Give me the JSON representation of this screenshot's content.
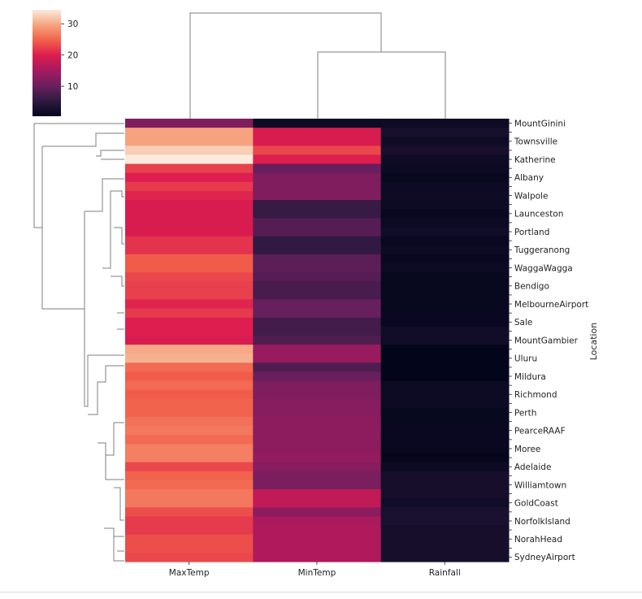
{
  "chart_data": {
    "type": "heatmap",
    "title": "",
    "xlabel": "",
    "ylabel": "Location",
    "columns": [
      "MaxTemp",
      "MinTemp",
      "Rainfall"
    ],
    "rows": [
      {
        "label": "MountGinini",
        "values": [
          12.0,
          1.5,
          1.8
        ]
      },
      {
        "label": "",
        "values": [
          29.5,
          19.5,
          2.8
        ]
      },
      {
        "label": "Townsville",
        "values": [
          29.5,
          19.5,
          1.8
        ]
      },
      {
        "label": "",
        "values": [
          32.5,
          23.0,
          2.8
        ]
      },
      {
        "label": "Katherine",
        "values": [
          34.5,
          20.0,
          1.8
        ]
      },
      {
        "label": "",
        "values": [
          22.5,
          10.0,
          1.5
        ]
      },
      {
        "label": "Albany",
        "values": [
          20.0,
          12.0,
          1.0
        ]
      },
      {
        "label": "",
        "values": [
          22.0,
          12.0,
          1.5
        ]
      },
      {
        "label": "Walpole",
        "values": [
          20.5,
          12.0,
          1.8
        ]
      },
      {
        "label": "",
        "values": [
          19.5,
          6.0,
          1.5
        ]
      },
      {
        "label": "Launceston",
        "values": [
          19.5,
          6.0,
          1.2
        ]
      },
      {
        "label": "",
        "values": [
          19.5,
          8.5,
          1.5
        ]
      },
      {
        "label": "Portland",
        "values": [
          19.5,
          8.5,
          2.0
        ]
      },
      {
        "label": "",
        "values": [
          21.5,
          5.5,
          1.2
        ]
      },
      {
        "label": "Tuggeranong",
        "values": [
          21.5,
          5.5,
          1.5
        ]
      },
      {
        "label": "",
        "values": [
          24.5,
          9.0,
          1.2
        ]
      },
      {
        "label": "WaggaWagga",
        "values": [
          24.5,
          9.0,
          1.5
        ]
      },
      {
        "label": "",
        "values": [
          23.0,
          8.5,
          1.0
        ]
      },
      {
        "label": "Bendigo",
        "values": [
          22.5,
          7.5,
          1.0
        ]
      },
      {
        "label": "",
        "values": [
          22.5,
          7.5,
          1.0
        ]
      },
      {
        "label": "MelbourneAirport",
        "values": [
          20.5,
          10.0,
          1.0
        ]
      },
      {
        "label": "",
        "values": [
          22.0,
          10.0,
          1.2
        ]
      },
      {
        "label": "Sale",
        "values": [
          20.0,
          7.0,
          1.2
        ]
      },
      {
        "label": "",
        "values": [
          20.0,
          7.0,
          2.0
        ]
      },
      {
        "label": "MountGambier",
        "values": [
          19.5,
          8.0,
          2.0
        ]
      },
      {
        "label": "",
        "values": [
          30.0,
          14.0,
          0.4
        ]
      },
      {
        "label": "Uluru",
        "values": [
          30.5,
          14.0,
          0.4
        ]
      },
      {
        "label": "",
        "values": [
          25.5,
          8.0,
          0.4
        ]
      },
      {
        "label": "Mildura",
        "values": [
          24.5,
          10.0,
          0.4
        ]
      },
      {
        "label": "",
        "values": [
          25.5,
          12.0,
          1.5
        ]
      },
      {
        "label": "Richmond",
        "values": [
          24.5,
          12.0,
          1.5
        ]
      },
      {
        "label": "",
        "values": [
          25.0,
          12.5,
          1.5
        ]
      },
      {
        "label": "Perth",
        "values": [
          25.0,
          12.5,
          1.0
        ]
      },
      {
        "label": "",
        "values": [
          26.0,
          13.0,
          1.0
        ]
      },
      {
        "label": "PearceRAAF",
        "values": [
          26.5,
          13.0,
          1.2
        ]
      },
      {
        "label": "",
        "values": [
          25.5,
          13.0,
          1.2
        ]
      },
      {
        "label": "Moree",
        "values": [
          27.0,
          13.0,
          1.0
        ]
      },
      {
        "label": "",
        "values": [
          27.0,
          13.5,
          0.6
        ]
      },
      {
        "label": "Adelaide",
        "values": [
          23.0,
          12.5,
          1.5
        ]
      },
      {
        "label": "",
        "values": [
          25.0,
          11.5,
          2.5
        ]
      },
      {
        "label": "Williamtown",
        "values": [
          25.5,
          11.5,
          2.5
        ]
      },
      {
        "label": "",
        "values": [
          26.5,
          17.5,
          2.5
        ]
      },
      {
        "label": "GoldCoast",
        "values": [
          26.5,
          17.5,
          2.0
        ]
      },
      {
        "label": "",
        "values": [
          23.5,
          13.0,
          3.0
        ]
      },
      {
        "label": "NorfolkIsland",
        "values": [
          22.0,
          15.5,
          3.0
        ]
      },
      {
        "label": "",
        "values": [
          22.0,
          16.0,
          2.5
        ]
      },
      {
        "label": "NorahHead",
        "values": [
          23.5,
          16.0,
          2.5
        ]
      },
      {
        "label": "",
        "values": [
          23.5,
          16.0,
          2.5
        ]
      },
      {
        "label": "SydneyAirport",
        "values": [
          23.0,
          16.0,
          2.5
        ]
      }
    ],
    "color_range": [
      0.4,
      34.5
    ],
    "colorbar_ticks": [
      10,
      20,
      30
    ],
    "colormap": [
      "#03051a",
      "#2e1a41",
      "#6a1f5e",
      "#a51a5f",
      "#dc1c4f",
      "#f2604a",
      "#f6a47f",
      "#faebdd"
    ]
  }
}
